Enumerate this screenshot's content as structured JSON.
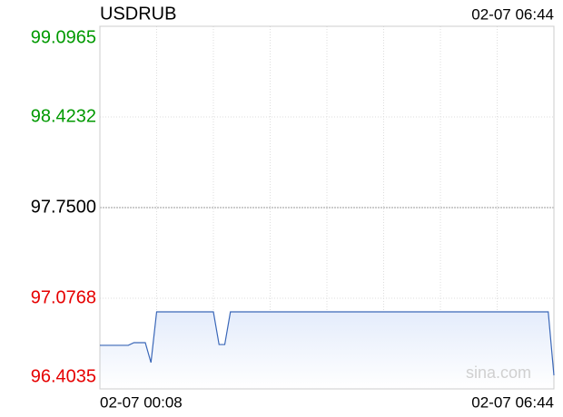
{
  "chart_data": {
    "type": "line",
    "title": "USDRUB",
    "timestamp": "02-07 06:44",
    "watermark": "sina.com",
    "categories": [
      "02-07 00:08",
      null,
      null,
      null,
      null,
      null,
      null,
      null,
      null,
      null,
      null,
      null,
      null,
      null,
      null,
      null,
      null,
      null,
      null,
      null,
      null,
      null,
      null,
      null,
      null,
      null,
      null,
      null,
      null,
      null,
      null,
      null,
      null,
      null,
      null,
      null,
      null,
      null,
      null,
      null,
      null,
      null,
      null,
      null,
      null,
      null,
      null,
      null,
      null,
      null,
      null,
      null,
      null,
      null,
      null,
      null,
      null,
      null,
      null,
      null,
      null,
      null,
      null,
      null,
      null,
      null,
      null,
      null,
      null,
      null,
      null,
      null,
      null,
      null,
      null,
      null,
      null,
      null,
      null,
      null,
      "02-07 06:44"
    ],
    "series": [
      {
        "name": "USDRUB",
        "color": "#3a67b8",
        "values": [
          96.727,
          96.727,
          96.727,
          96.727,
          96.727,
          96.727,
          96.747,
          96.747,
          96.747,
          96.599,
          96.976,
          96.976,
          96.976,
          96.976,
          96.976,
          96.976,
          96.976,
          96.976,
          96.976,
          96.976,
          96.976,
          96.733,
          96.733,
          96.976,
          96.976,
          96.976,
          96.976,
          96.976,
          96.976,
          96.976,
          96.976,
          96.976,
          96.976,
          96.976,
          96.976,
          96.976,
          96.976,
          96.976,
          96.976,
          96.976,
          96.976,
          96.976,
          96.976,
          96.976,
          96.976,
          96.976,
          96.976,
          96.976,
          96.976,
          96.976,
          96.976,
          96.976,
          96.976,
          96.976,
          96.976,
          96.976,
          96.976,
          96.976,
          96.976,
          96.976,
          96.976,
          96.976,
          96.976,
          96.976,
          96.976,
          96.976,
          96.976,
          96.976,
          96.976,
          96.976,
          96.976,
          96.976,
          96.976,
          96.976,
          96.976,
          96.976,
          96.976,
          96.976,
          96.976,
          96.976,
          96.504
        ]
      }
    ],
    "ylim": [
      96.4035,
      99.0965
    ],
    "yticks": [
      99.0965,
      98.4232,
      {
        "value": 97.75,
        "label": "97.7500"
      },
      97.0768,
      96.4035
    ],
    "ytick_colors": [
      "#009900",
      "#009900",
      "#000000",
      "#e60000",
      "#e60000"
    ],
    "grid": true
  }
}
